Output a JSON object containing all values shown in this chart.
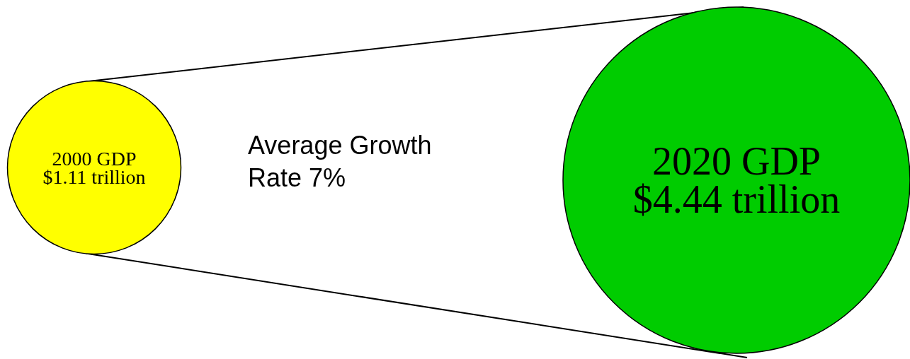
{
  "chart_data": {
    "type": "other",
    "categories": [
      "2000 GDP",
      "2020 GDP"
    ],
    "values": [
      1.11,
      4.44
    ],
    "value_labels": [
      "$1.11 trillion",
      "$4.44 trillion"
    ],
    "colors": [
      "#ffff00",
      "#00cc00"
    ],
    "annotations": [
      "Average Growth Rate 7%"
    ]
  }
}
